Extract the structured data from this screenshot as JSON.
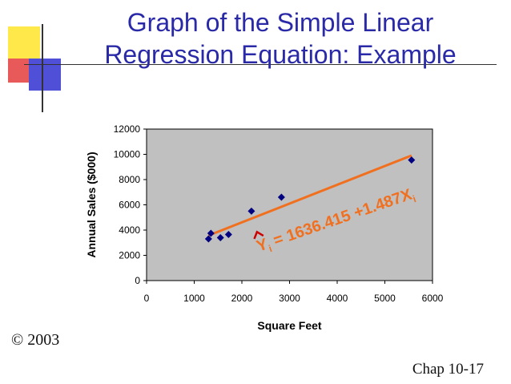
{
  "slide": {
    "title_line1": "Graph of the Simple Linear",
    "title_line2": "Regression Equation: Example",
    "copyright": "© 2003",
    "chapter": "Chap 10-17"
  },
  "colors": {
    "title": "#2a2aa8",
    "plot_area": "#c0c0c0",
    "points": "#000080",
    "line": "#f07020",
    "hat": "#cc0000"
  },
  "chart_data": {
    "type": "scatter",
    "xlabel": "Square Feet",
    "ylabel": "Annual Sales ($000)",
    "xlim": [
      0,
      6000
    ],
    "ylim": [
      0,
      12000
    ],
    "xticks": [
      0,
      1000,
      2000,
      3000,
      4000,
      5000,
      6000
    ],
    "yticks": [
      0,
      2000,
      4000,
      6000,
      8000,
      10000,
      12000
    ],
    "grid": false,
    "points": [
      {
        "x": 1300,
        "y": 3300
      },
      {
        "x": 1350,
        "y": 3750
      },
      {
        "x": 1550,
        "y": 3400
      },
      {
        "x": 1720,
        "y": 3650
      },
      {
        "x": 2200,
        "y": 5500
      },
      {
        "x": 2830,
        "y": 6600
      },
      {
        "x": 5560,
        "y": 9550
      }
    ],
    "regression": {
      "intercept": 1636.415,
      "slope": 1.487,
      "x_range": [
        1300,
        5560
      ]
    },
    "equation": {
      "y": "Y",
      "y_sub": "i",
      "body": " = 1636.415 +1.487X",
      "x_sub": "i"
    }
  }
}
